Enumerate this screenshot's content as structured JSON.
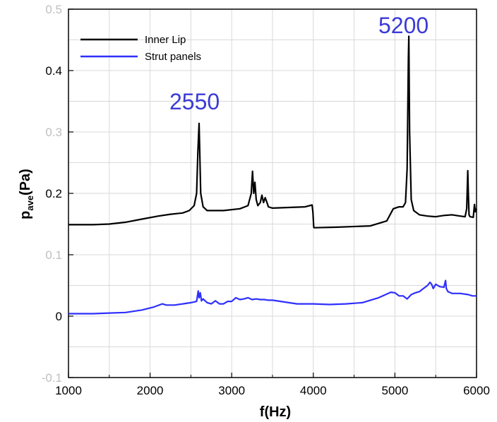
{
  "chart_data": {
    "type": "line",
    "xlabel": "f(Hz)",
    "ylabel_main": "p",
    "ylabel_sub": "ave",
    "ylabel_unit": "(Pa)",
    "xlim": [
      1000,
      6000
    ],
    "ylim": [
      -0.1,
      0.5
    ],
    "xticks": [
      1000,
      2000,
      3000,
      4000,
      5000,
      6000
    ],
    "xtick_labels": [
      "1000",
      "2000",
      "3000",
      "4000",
      "5000",
      "6000"
    ],
    "yticks": [
      -0.1,
      0,
      0.1,
      0.2,
      0.3,
      0.4,
      0.5
    ],
    "ytick_labels": [
      "-0.1",
      "0",
      "0.1",
      "0.2",
      "0.3",
      "0.4",
      "0.5"
    ],
    "grid": true,
    "legend_position": "top-left",
    "annotations": [
      {
        "text": "2550",
        "x": 2600,
        "y": 0.35
      },
      {
        "text": "5200",
        "x": 5160,
        "y": 0.465
      }
    ],
    "series": [
      {
        "name": "Inner Lip",
        "color": "#000000",
        "x": [
          1000,
          1300,
          1500,
          1700,
          1900,
          2100,
          2250,
          2400,
          2480,
          2540,
          2570,
          2585,
          2600,
          2620,
          2650,
          2700,
          2900,
          3100,
          3200,
          3240,
          3255,
          3270,
          3285,
          3300,
          3320,
          3350,
          3370,
          3390,
          3410,
          3430,
          3450,
          3500,
          3700,
          3900,
          3985,
          3995,
          4005,
          4010,
          4300,
          4700,
          4900,
          4980,
          5050,
          5100,
          5130,
          5150,
          5165,
          5170,
          5180,
          5200,
          5230,
          5300,
          5400,
          5500,
          5600,
          5700,
          5800,
          5860,
          5880,
          5893,
          5900,
          5908,
          5920,
          5960,
          5975,
          5985,
          6000
        ],
        "y": [
          0.149,
          0.149,
          0.15,
          0.153,
          0.158,
          0.163,
          0.166,
          0.168,
          0.172,
          0.18,
          0.2,
          0.265,
          0.314,
          0.2,
          0.178,
          0.172,
          0.172,
          0.175,
          0.18,
          0.2,
          0.236,
          0.2,
          0.218,
          0.19,
          0.18,
          0.185,
          0.197,
          0.185,
          0.193,
          0.186,
          0.178,
          0.176,
          0.177,
          0.178,
          0.181,
          0.17,
          0.145,
          0.144,
          0.145,
          0.147,
          0.155,
          0.175,
          0.178,
          0.178,
          0.185,
          0.24,
          0.422,
          0.456,
          0.3,
          0.19,
          0.172,
          0.165,
          0.163,
          0.162,
          0.164,
          0.165,
          0.163,
          0.162,
          0.175,
          0.237,
          0.2,
          0.165,
          0.162,
          0.161,
          0.182,
          0.17,
          0.175
        ]
      },
      {
        "name": "Strut panels",
        "color": "#2f2fff",
        "x": [
          1000,
          1300,
          1500,
          1700,
          1900,
          2050,
          2150,
          2200,
          2300,
          2400,
          2500,
          2570,
          2590,
          2600,
          2615,
          2630,
          2650,
          2700,
          2750,
          2800,
          2850,
          2900,
          2950,
          3000,
          3050,
          3100,
          3150,
          3200,
          3250,
          3300,
          3350,
          3400,
          3450,
          3500,
          3600,
          3800,
          4000,
          4200,
          4400,
          4600,
          4800,
          4950,
          5000,
          5050,
          5100,
          5150,
          5200,
          5250,
          5300,
          5350,
          5400,
          5430,
          5450,
          5470,
          5500,
          5550,
          5600,
          5620,
          5630,
          5650,
          5700,
          5800,
          5900,
          5950,
          6000
        ],
        "y": [
          0.004,
          0.004,
          0.005,
          0.006,
          0.01,
          0.015,
          0.02,
          0.018,
          0.018,
          0.02,
          0.022,
          0.024,
          0.041,
          0.03,
          0.038,
          0.025,
          0.028,
          0.022,
          0.02,
          0.025,
          0.02,
          0.02,
          0.024,
          0.024,
          0.03,
          0.027,
          0.028,
          0.03,
          0.027,
          0.028,
          0.027,
          0.027,
          0.026,
          0.026,
          0.024,
          0.02,
          0.02,
          0.019,
          0.02,
          0.022,
          0.03,
          0.039,
          0.038,
          0.033,
          0.033,
          0.028,
          0.035,
          0.038,
          0.04,
          0.045,
          0.05,
          0.055,
          0.052,
          0.045,
          0.052,
          0.048,
          0.047,
          0.058,
          0.045,
          0.04,
          0.037,
          0.037,
          0.035,
          0.033,
          0.033
        ]
      }
    ]
  }
}
